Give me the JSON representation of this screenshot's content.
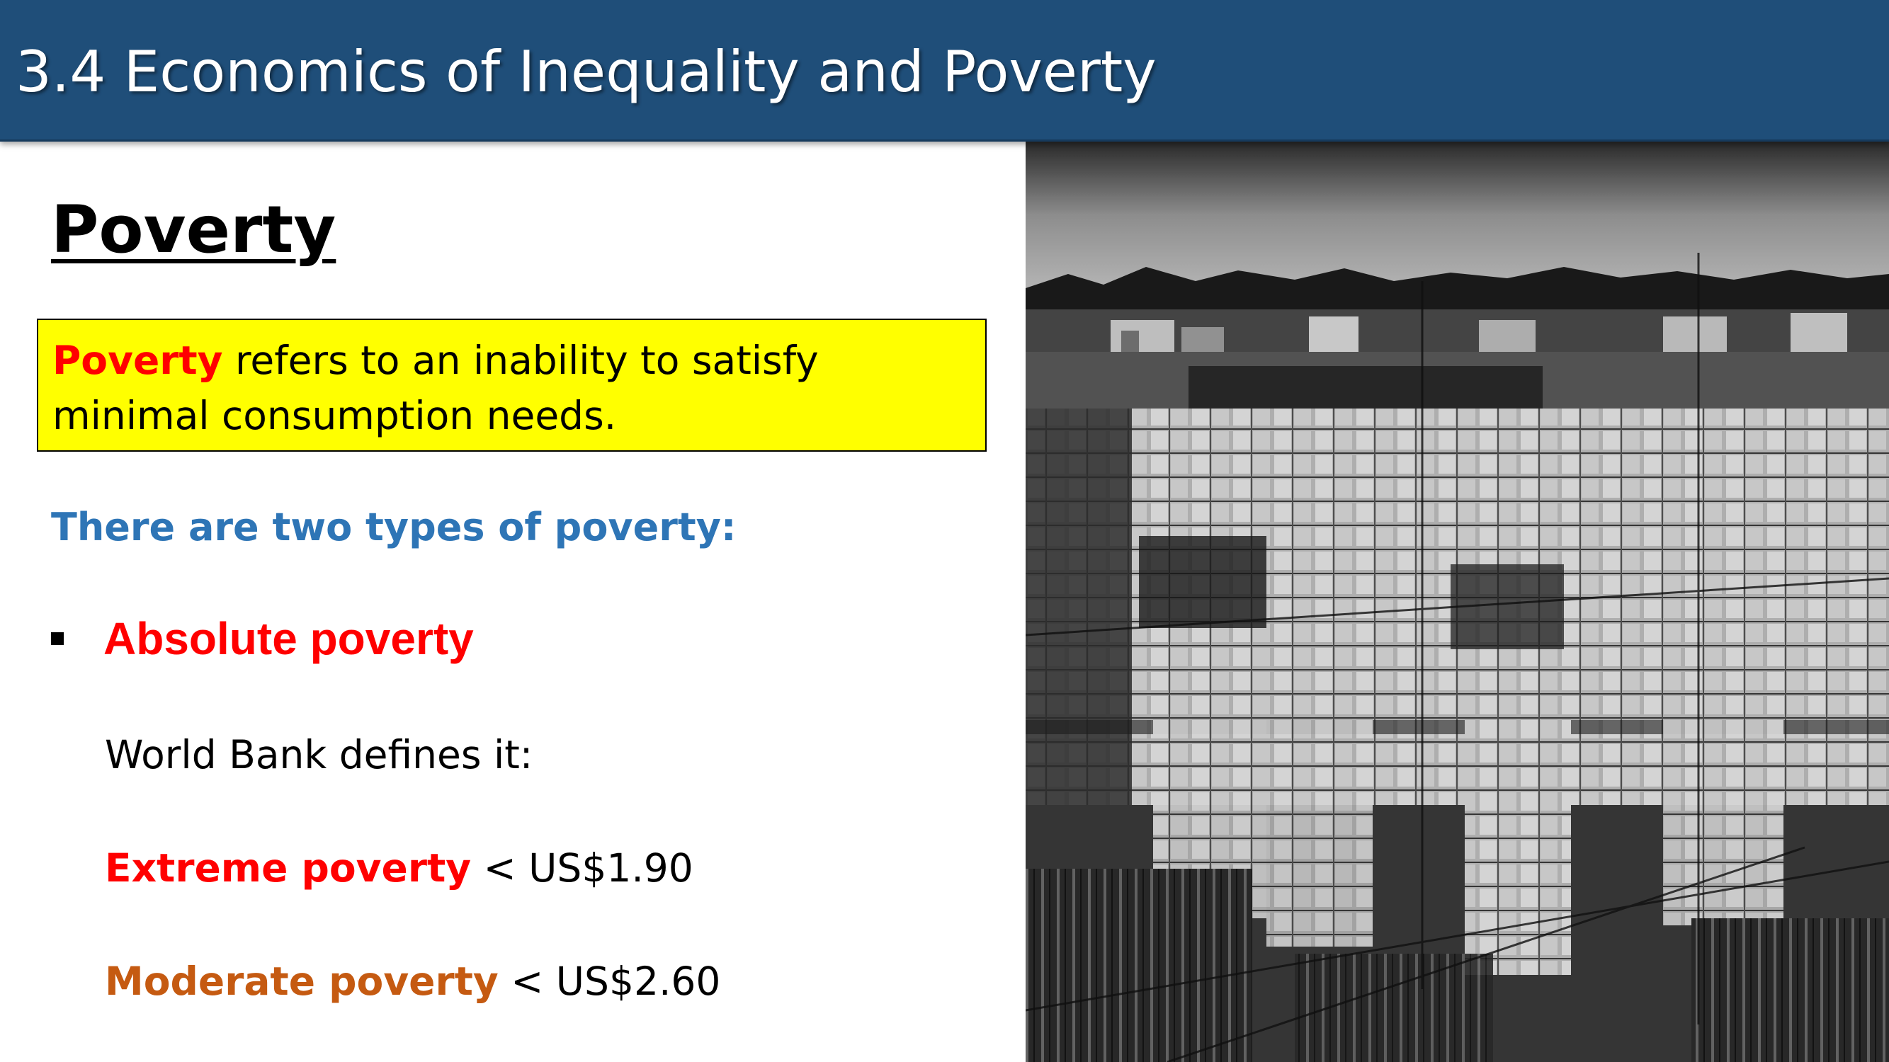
{
  "slide": {
    "title": "3.4 Economics of Inequality and Poverty",
    "heading": "Poverty",
    "definition": {
      "term": "Poverty",
      "text": " refers to an inability to satisfy minimal consumption needs."
    },
    "types_intro": "There are two types of poverty:",
    "bullet": {
      "label": "Absolute poverty"
    },
    "world_bank_line": "World Bank defines it:",
    "extreme": {
      "label": "Extreme poverty",
      "value": " < US$1.90"
    },
    "moderate": {
      "label": "Moderate poverty",
      "value": " < US$2.60"
    }
  },
  "photo": {
    "icon": "cemetery-slum-photo",
    "style": "black-and-white"
  },
  "colors": {
    "title_bar": "#1f4e79",
    "definition_box": "#ffff00",
    "red": "#ff0000",
    "blue": "#2e75b6",
    "orange": "#c55a11"
  }
}
